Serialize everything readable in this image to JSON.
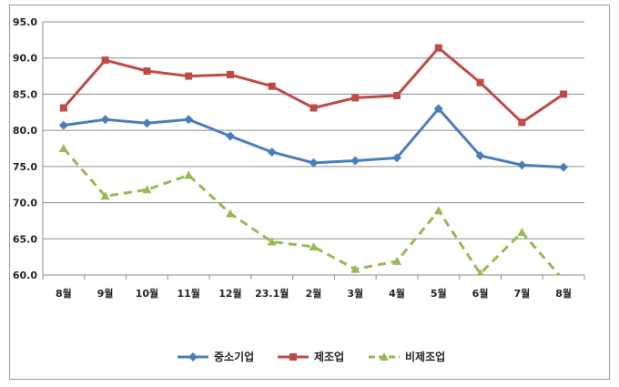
{
  "chart_data": {
    "type": "line",
    "title": "",
    "xlabel": "",
    "ylabel": "",
    "categories": [
      "8월",
      "9월",
      "10월",
      "11월",
      "12월",
      "23.1월",
      "2월",
      "3월",
      "4월",
      "5월",
      "6월",
      "7월",
      "8월"
    ],
    "ylim": [
      60.0,
      95.0
    ],
    "yticks": [
      "60.0",
      "65.0",
      "70.0",
      "75.0",
      "80.0",
      "85.0",
      "90.0",
      "95.0"
    ],
    "grid": "horizontal",
    "legend_position": "bottom",
    "series": [
      {
        "name": "중소기업",
        "color": "#4a7ebb",
        "marker": "diamond",
        "dash": "solid",
        "values": [
          80.7,
          81.5,
          81.0,
          81.5,
          79.2,
          77.0,
          75.5,
          75.8,
          76.2,
          83.0,
          76.5,
          75.2,
          74.9
        ]
      },
      {
        "name": "제조업",
        "color": "#be4b48",
        "marker": "square",
        "dash": "solid",
        "values": [
          83.1,
          89.7,
          88.2,
          87.5,
          87.7,
          86.1,
          83.1,
          84.5,
          84.8,
          91.4,
          86.6,
          81.1,
          85.0
        ]
      },
      {
        "name": "비제조업",
        "color": "#98b954",
        "marker": "triangle",
        "dash": "dashed",
        "values": [
          77.5,
          70.9,
          71.8,
          73.8,
          68.5,
          64.6,
          63.9,
          60.8,
          61.9,
          68.9,
          60.2,
          65.9,
          59.3
        ]
      }
    ]
  }
}
